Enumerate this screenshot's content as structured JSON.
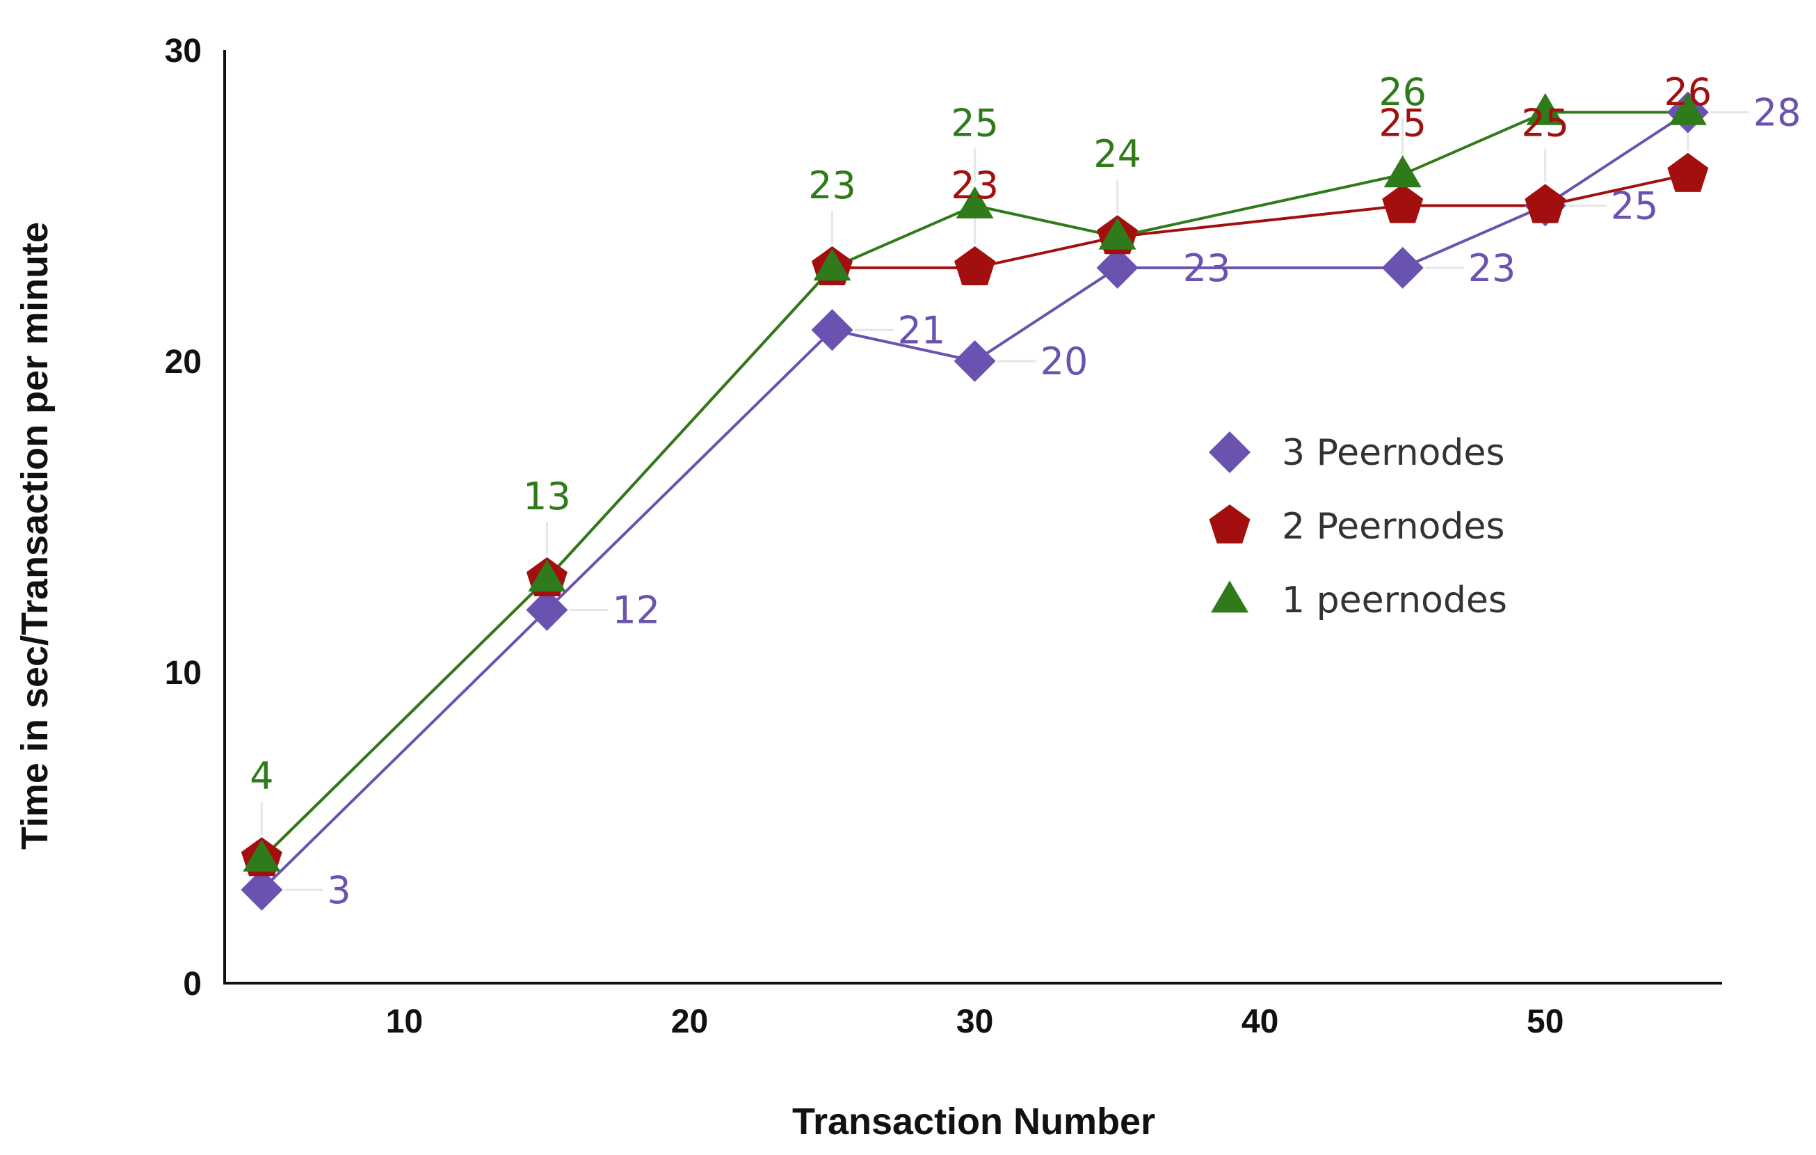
{
  "chart_data": {
    "type": "line",
    "title": "",
    "xlabel": "Transaction Number",
    "ylabel": "Time in sec/Transaction per minute",
    "xlim": [
      3.7,
      56.2
    ],
    "ylim": [
      0,
      30
    ],
    "xticks": [
      10,
      20,
      30,
      40,
      50
    ],
    "yticks": [
      0,
      10,
      20,
      30
    ],
    "grid": false,
    "legend_position": "right-center",
    "series": [
      {
        "name": "3 Peernodes",
        "marker": "diamond",
        "color": "#6a52b0",
        "x": [
          5,
          15,
          25,
          30,
          35,
          45,
          50,
          55
        ],
        "y": [
          3,
          12,
          21,
          20,
          23,
          23,
          25,
          28
        ],
        "labels": [
          "3",
          "12",
          "21",
          "20",
          "23",
          "23",
          "25",
          "28"
        ]
      },
      {
        "name": "2 Peernodes",
        "marker": "pentagon",
        "color": "#a30f0f",
        "x": [
          5,
          15,
          25,
          30,
          35,
          45,
          50,
          55
        ],
        "y": [
          4,
          13,
          23,
          23,
          24,
          25,
          25,
          26
        ],
        "labels": [
          "23",
          "25",
          "25",
          "26"
        ],
        "label_index": [
          3,
          5,
          6,
          7
        ]
      },
      {
        "name": "1 peernodes",
        "marker": "triangle",
        "color": "#2f7a1a",
        "x": [
          5,
          15,
          25,
          30,
          35,
          45,
          50,
          55
        ],
        "y": [
          4,
          13,
          23,
          25,
          24,
          26,
          28,
          28
        ],
        "labels": [
          "4",
          "13",
          "23",
          "25",
          "24",
          "26"
        ],
        "label_index": [
          0,
          1,
          2,
          3,
          4,
          5
        ]
      }
    ]
  }
}
